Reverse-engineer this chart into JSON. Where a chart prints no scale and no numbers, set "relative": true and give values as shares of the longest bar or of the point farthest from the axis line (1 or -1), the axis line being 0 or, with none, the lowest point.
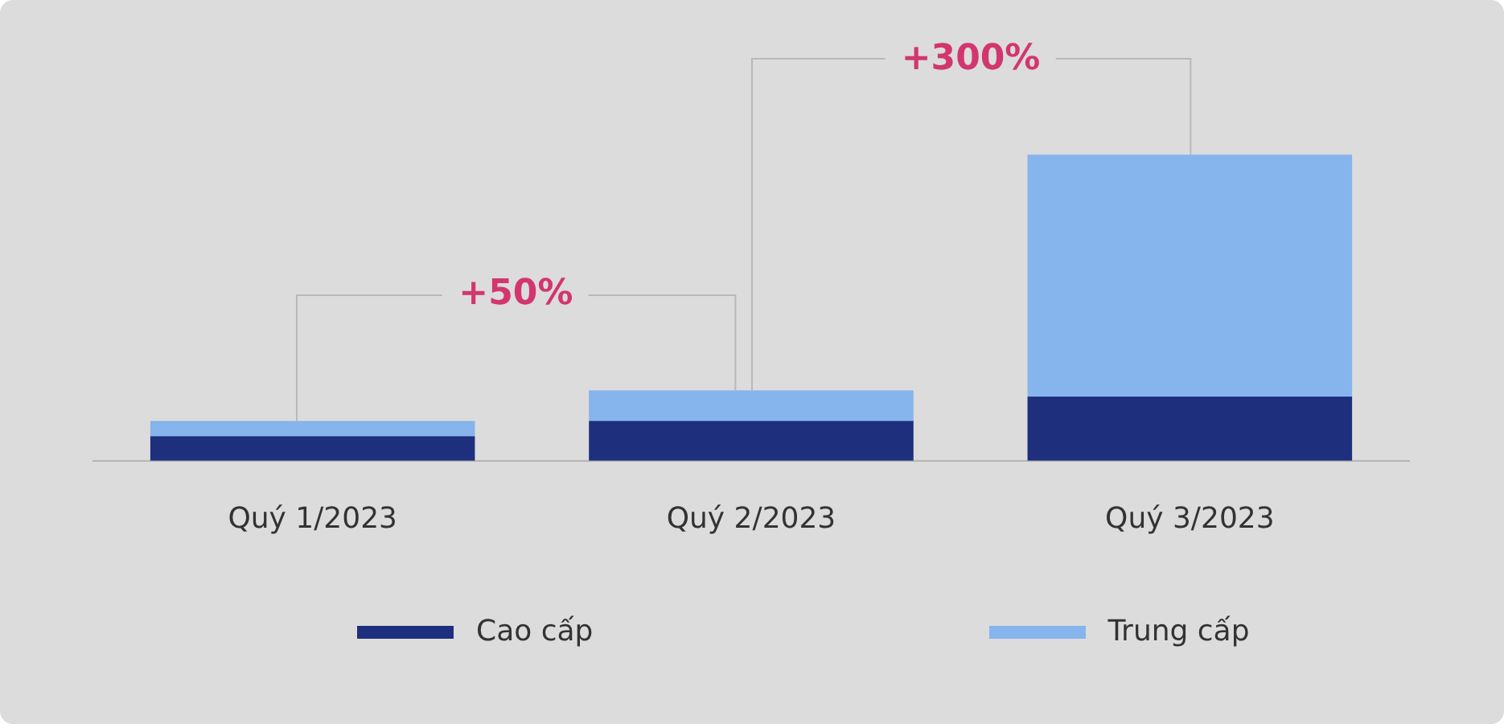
{
  "chart_data": {
    "type": "bar",
    "stacked": true,
    "relative": true,
    "categories": [
      "Quý 1/2023",
      "Quý 2/2023",
      "Quý 3/2023"
    ],
    "series": [
      {
        "name": "Cao cấp",
        "color": "#1e2f7e",
        "values": [
          0.08,
          0.13,
          0.21
        ]
      },
      {
        "name": "Trung cấp",
        "color": "#86b4ec",
        "values": [
          0.05,
          0.1,
          0.79
        ]
      }
    ],
    "annotations": [
      "+50%",
      "+300%"
    ],
    "legend": "bottom"
  }
}
